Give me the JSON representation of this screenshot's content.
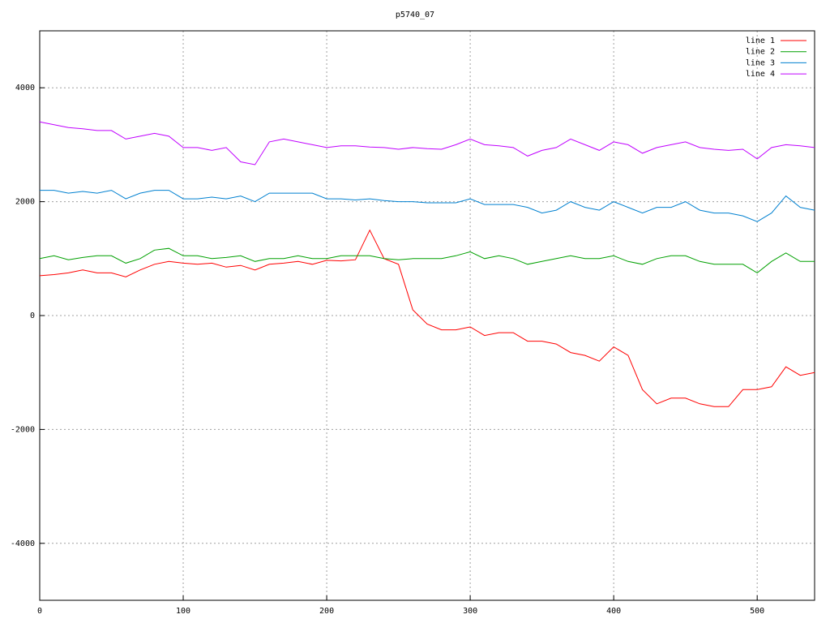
{
  "chart_data": {
    "type": "line",
    "title": "p5740_07",
    "x": [
      0,
      10,
      20,
      30,
      40,
      50,
      60,
      70,
      80,
      90,
      100,
      110,
      120,
      130,
      140,
      150,
      160,
      170,
      180,
      190,
      200,
      210,
      220,
      230,
      240,
      250,
      260,
      270,
      280,
      290,
      300,
      310,
      320,
      330,
      340,
      350,
      360,
      370,
      380,
      390,
      400,
      410,
      420,
      430,
      440,
      450,
      460,
      470,
      480,
      490,
      500,
      510,
      520,
      530,
      540
    ],
    "series": [
      {
        "name": "line 1",
        "color": "#ff0000",
        "values": [
          700,
          720,
          750,
          800,
          750,
          750,
          680,
          800,
          900,
          950,
          920,
          900,
          920,
          850,
          880,
          800,
          900,
          920,
          950,
          900,
          970,
          960,
          980,
          1500,
          1000,
          900,
          100,
          -150,
          -250,
          -250,
          -200,
          -350,
          -300,
          -300,
          -450,
          -450,
          -500,
          -650,
          -700,
          -800,
          -550,
          -700,
          -1300,
          -1550,
          -1450,
          -1450,
          -1550,
          -1600,
          -1600,
          -1300,
          -1300,
          -1250,
          -900,
          -1050,
          -1000
        ]
      },
      {
        "name": "line 2",
        "color": "#00a000",
        "values": [
          1000,
          1050,
          980,
          1020,
          1050,
          1050,
          920,
          1000,
          1150,
          1180,
          1050,
          1050,
          1000,
          1020,
          1050,
          950,
          1000,
          1000,
          1050,
          1000,
          1000,
          1050,
          1050,
          1050,
          1000,
          980,
          1000,
          1000,
          1000,
          1050,
          1120,
          1000,
          1050,
          1000,
          900,
          950,
          1000,
          1050,
          1000,
          1000,
          1050,
          950,
          900,
          1000,
          1050,
          1050,
          950,
          900,
          900,
          900,
          750,
          950,
          1100,
          950,
          950
        ]
      },
      {
        "name": "line 3",
        "color": "#0080d0",
        "values": [
          2200,
          2200,
          2150,
          2180,
          2150,
          2200,
          2050,
          2150,
          2200,
          2200,
          2050,
          2050,
          2080,
          2050,
          2100,
          2000,
          2150,
          2150,
          2150,
          2150,
          2050,
          2050,
          2030,
          2050,
          2020,
          2000,
          2000,
          1980,
          1980,
          1980,
          2050,
          1950,
          1950,
          1950,
          1900,
          1800,
          1850,
          2000,
          1900,
          1850,
          2000,
          1900,
          1800,
          1900,
          1900,
          2000,
          1850,
          1800,
          1800,
          1750,
          1650,
          1800,
          2100,
          1900,
          1850
        ]
      },
      {
        "name": "line 4",
        "color": "#c000ff",
        "values": [
          3400,
          3350,
          3300,
          3280,
          3250,
          3250,
          3100,
          3150,
          3200,
          3150,
          2950,
          2950,
          2900,
          2950,
          2700,
          2650,
          3050,
          3100,
          3050,
          3000,
          2950,
          2980,
          2980,
          2960,
          2950,
          2920,
          2950,
          2930,
          2920,
          3000,
          3100,
          3000,
          2980,
          2950,
          2800,
          2900,
          2950,
          3100,
          3000,
          2900,
          3050,
          3000,
          2850,
          2950,
          3000,
          3050,
          2950,
          2920,
          2900,
          2920,
          2750,
          2950,
          3000,
          2980,
          2950
        ]
      }
    ],
    "xlim": [
      0,
      540
    ],
    "xticks": [
      0,
      100,
      200,
      300,
      400,
      500
    ],
    "ylim": [
      -5000,
      5000
    ],
    "yticks": [
      -4000,
      -2000,
      0,
      2000,
      4000
    ],
    "grid": true,
    "legend": "top-right"
  }
}
